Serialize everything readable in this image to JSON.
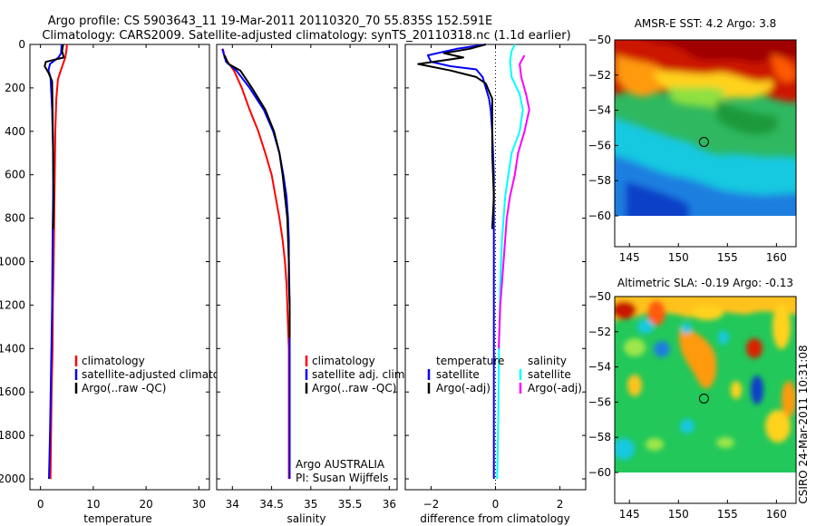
{
  "figure": {
    "title_line1": "Argo profile: CS 5903643_11 19-Mar-2011 20110320_70 55.835S 152.591E",
    "title_line2": "Climatology: CARS2009. Satellite-adjusted climatology: synTS_20110318.nc (1.1d earlier)",
    "side_label": "CSIRO 24-Mar-2011 10:31:08",
    "owner_line1": "Argo AUSTRALIA",
    "owner_line2": "PI: Susan Wijffels"
  },
  "colors": {
    "climatology": "#ff0000",
    "satellite": "#0000ff",
    "argo": "#000000",
    "salinity_satellite": "#00ffff",
    "salinity_argo": "#ff00ff"
  },
  "chart_data": [
    {
      "type": "line",
      "id": "temperature",
      "xlabel": "temperature",
      "ylabel": "",
      "xlim": [
        -2,
        32
      ],
      "ylim": [
        2050,
        0
      ],
      "xticks": [
        0,
        10,
        20,
        30
      ],
      "yticks": [
        0,
        200,
        400,
        600,
        800,
        1000,
        1200,
        1400,
        1600,
        1800,
        2000
      ],
      "legend_entries": [
        "climatology",
        "satellite-adjusted climatology",
        "Argo(..raw -QC)"
      ],
      "series": [
        {
          "name": "climatology",
          "color": "#ff0000",
          "points": [
            [
              5,
              0
            ],
            [
              4.9,
              30
            ],
            [
              4.7,
              60
            ],
            [
              4,
              110
            ],
            [
              3.3,
              160
            ],
            [
              3,
              250
            ],
            [
              2.8,
              400
            ],
            [
              2.7,
              600
            ],
            [
              2.6,
              800
            ],
            [
              2.5,
              1000
            ],
            [
              2.35,
              1200
            ],
            [
              2.3,
              1400
            ],
            [
              2.1,
              1600
            ],
            [
              2,
              1800
            ],
            [
              1.9,
              2000
            ]
          ]
        },
        {
          "name": "satellite-adjusted climatology",
          "color": "#0000ff",
          "points": [
            [
              4,
              0
            ],
            [
              3.9,
              40
            ],
            [
              3.4,
              60
            ],
            [
              1.8,
              90
            ],
            [
              1.5,
              120
            ],
            [
              1.9,
              150
            ],
            [
              2.2,
              300
            ],
            [
              2.4,
              500
            ],
            [
              2.4,
              700
            ],
            [
              2.3,
              900
            ],
            [
              2.2,
              1200
            ],
            [
              2,
              1500
            ],
            [
              1.8,
              1800
            ],
            [
              1.6,
              2000
            ]
          ]
        },
        {
          "name": "Argo(..raw -QC)",
          "color": "#000000",
          "points": [
            [
              4.3,
              0
            ],
            [
              4.1,
              30
            ],
            [
              4.4,
              60
            ],
            [
              1,
              80
            ],
            [
              0.8,
              100
            ],
            [
              1.5,
              130
            ],
            [
              2.2,
              170
            ],
            [
              2.3,
              300
            ],
            [
              2.4,
              500
            ],
            [
              2.5,
              700
            ],
            [
              2.4,
              850
            ]
          ]
        }
      ]
    },
    {
      "type": "line",
      "id": "salinity",
      "xlabel": "salinity",
      "ylabel": "",
      "xlim": [
        33.8,
        36.1
      ],
      "ylim": [
        2050,
        0
      ],
      "xticks": [
        34,
        34.5,
        35,
        35.5,
        36
      ],
      "xtick_labels": [
        "34",
        "34.5",
        "35",
        "35.5",
        "36"
      ],
      "legend_entries": [
        "climatology",
        "satellite adj. clim.",
        "Argo(..raw -QC)"
      ],
      "series": [
        {
          "name": "climatology",
          "color": "#ff0000",
          "points": [
            [
              33.88,
              20
            ],
            [
              33.9,
              60
            ],
            [
              34.02,
              120
            ],
            [
              34.12,
              200
            ],
            [
              34.22,
              300
            ],
            [
              34.33,
              400
            ],
            [
              34.42,
              500
            ],
            [
              34.5,
              600
            ],
            [
              34.55,
              700
            ],
            [
              34.6,
              800
            ],
            [
              34.64,
              900
            ],
            [
              34.67,
              1000
            ],
            [
              34.69,
              1100
            ],
            [
              34.7,
              1200
            ],
            [
              34.71,
              1300
            ],
            [
              34.72,
              1400
            ],
            [
              34.72,
              1600
            ],
            [
              34.72,
              1800
            ],
            [
              34.72,
              2000
            ]
          ]
        },
        {
          "name": "satellite adj. clim.",
          "color": "#0000ff",
          "points": [
            [
              33.87,
              20
            ],
            [
              33.92,
              80
            ],
            [
              34.05,
              120
            ],
            [
              34.22,
              200
            ],
            [
              34.4,
              300
            ],
            [
              34.52,
              400
            ],
            [
              34.6,
              500
            ],
            [
              34.65,
              600
            ],
            [
              34.69,
              700
            ],
            [
              34.71,
              800
            ],
            [
              34.72,
              900
            ],
            [
              34.72,
              1000
            ],
            [
              34.73,
              1200
            ],
            [
              34.73,
              1400
            ],
            [
              34.73,
              1600
            ],
            [
              34.73,
              1800
            ],
            [
              34.73,
              2000
            ]
          ]
        },
        {
          "name": "Argo(..raw -QC)",
          "color": "#000000",
          "points": [
            [
              33.9,
              50
            ],
            [
              33.95,
              90
            ],
            [
              34.1,
              120
            ],
            [
              34.25,
              200
            ],
            [
              34.42,
              300
            ],
            [
              34.53,
              400
            ],
            [
              34.6,
              500
            ],
            [
              34.64,
              600
            ],
            [
              34.67,
              700
            ],
            [
              34.7,
              800
            ],
            [
              34.71,
              900
            ],
            [
              34.72,
              1000
            ],
            [
              34.72,
              1100
            ],
            [
              34.73,
              1200
            ],
            [
              34.73,
              1300
            ],
            [
              34.73,
              1350
            ]
          ]
        }
      ]
    },
    {
      "type": "line",
      "id": "difference",
      "xlabel": "difference from climatology",
      "ylabel": "",
      "xlim": [
        -2.8,
        2.8
      ],
      "ylim": [
        2050,
        0
      ],
      "xticks": [
        -2,
        0,
        2
      ],
      "xtick_labels": [
        "−2",
        "0",
        "2"
      ],
      "legend": {
        "temperature_header": "temperature",
        "salinity_header": "salinity",
        "temperature_entries": [
          "satellite",
          "Argo(-adj)"
        ],
        "salinity_entries": [
          "satellite",
          "Argo(-adj)"
        ]
      },
      "series": [
        {
          "name": "temperature satellite",
          "color": "#0000ff",
          "points": [
            [
              -0.3,
              0
            ],
            [
              -1.2,
              20
            ],
            [
              -2.1,
              50
            ],
            [
              -2,
              80
            ],
            [
              -1.4,
              100
            ],
            [
              -0.6,
              115
            ],
            [
              -0.4,
              150
            ],
            [
              -0.3,
              200
            ],
            [
              -0.2,
              250
            ],
            [
              -0.15,
              300
            ],
            [
              -0.1,
              400
            ],
            [
              -0.05,
              600
            ],
            [
              -0.05,
              1000
            ],
            [
              -0.05,
              1500
            ],
            [
              -0.05,
              2000
            ]
          ]
        },
        {
          "name": "temperature Argo(-adj)",
          "color": "#000000",
          "points": [
            [
              -0.3,
              0
            ],
            [
              -0.8,
              20
            ],
            [
              -1.6,
              40
            ],
            [
              -1,
              60
            ],
            [
              -2.4,
              90
            ],
            [
              -1.4,
              120
            ],
            [
              -0.6,
              150
            ],
            [
              -0.3,
              180
            ],
            [
              -0.1,
              250
            ],
            [
              -0.1,
              300
            ],
            [
              -0.1,
              500
            ],
            [
              -0.05,
              700
            ],
            [
              -0.1,
              850
            ]
          ]
        },
        {
          "name": "salinity satellite",
          "color": "#00ffff",
          "points": [
            [
              0.6,
              0
            ],
            [
              0.5,
              30
            ],
            [
              0.45,
              80
            ],
            [
              0.5,
              150
            ],
            [
              0.75,
              230
            ],
            [
              0.85,
              300
            ],
            [
              0.75,
              400
            ],
            [
              0.5,
              500
            ],
            [
              0.4,
              600
            ],
            [
              0.3,
              700
            ],
            [
              0.2,
              900
            ],
            [
              0.15,
              1100
            ],
            [
              0.12,
              1300
            ],
            [
              0.1,
              1500
            ],
            [
              0.08,
              1800
            ],
            [
              0.05,
              2000
            ]
          ]
        },
        {
          "name": "salinity Argo(-adj)",
          "color": "#ff00ff",
          "points": [
            [
              0.9,
              50
            ],
            [
              0.75,
              90
            ],
            [
              0.8,
              150
            ],
            [
              0.95,
              230
            ],
            [
              1.05,
              300
            ],
            [
              0.9,
              400
            ],
            [
              0.7,
              500
            ],
            [
              0.6,
              600
            ],
            [
              0.45,
              700
            ],
            [
              0.35,
              800
            ],
            [
              0.25,
              1000
            ],
            [
              0.2,
              1100
            ],
            [
              0.15,
              1200
            ],
            [
              0.1,
              1400
            ]
          ]
        }
      ]
    },
    {
      "type": "heatmap",
      "id": "sst_map",
      "title": "AMSR-E SST: 4.2 Argo: 3.8",
      "xlim": [
        143.5,
        162
      ],
      "ylim": [
        -60,
        -50
      ],
      "xticks": [
        145,
        150,
        155,
        160
      ],
      "yticks": [
        -50,
        -52,
        -54,
        -56,
        -58,
        -60
      ],
      "marker": {
        "lon": 152.6,
        "lat": -55.8
      }
    },
    {
      "type": "heatmap",
      "id": "sla_map",
      "title": "Altimetric SLA: -0.19 Argo: -0.13",
      "xlim": [
        143.5,
        162
      ],
      "ylim": [
        -60,
        -50
      ],
      "xticks": [
        145,
        150,
        155,
        160
      ],
      "yticks": [
        -50,
        -52,
        -54,
        -56,
        -58,
        -60
      ],
      "marker": {
        "lon": 152.6,
        "lat": -55.8
      }
    }
  ]
}
